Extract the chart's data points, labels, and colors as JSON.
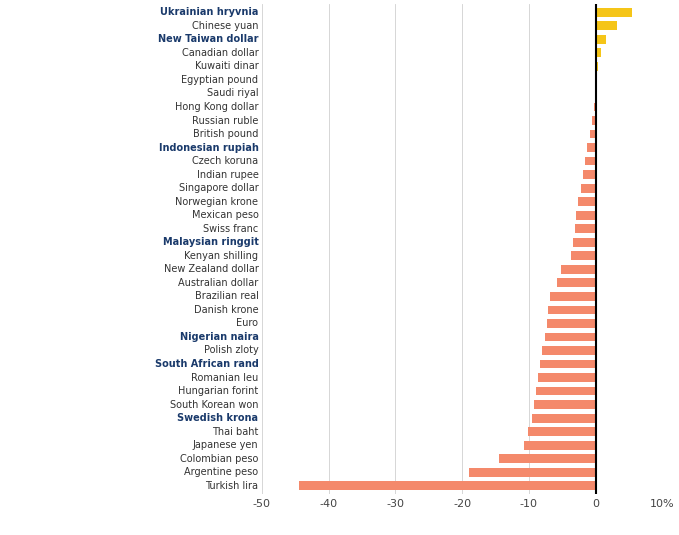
{
  "currencies": [
    "Ukrainian hryvnia",
    "Chinese yuan",
    "New Taiwan dollar",
    "Canadian dollar",
    "Kuwaiti dinar",
    "Egyptian pound",
    "Saudi riyal",
    "Hong Kong dollar",
    "Russian ruble",
    "British pound",
    "Indonesian rupiah",
    "Czech koruna",
    "Indian rupee",
    "Singapore dollar",
    "Norwegian krone",
    "Mexican peso",
    "Swiss franc",
    "Malaysian ringgit",
    "Kenyan shilling",
    "New Zealand dollar",
    "Australian dollar",
    "Brazilian real",
    "Danish krone",
    "Euro",
    "Nigerian naira",
    "Polish zloty",
    "South African rand",
    "Romanian leu",
    "Hungarian forint",
    "South Korean won",
    "Swedish krona",
    "Thai baht",
    "Japanese yen",
    "Colombian peso",
    "Argentine peso",
    "Turkish lira"
  ],
  "bold_currencies": [
    "Ukrainian hryvnia",
    "New Taiwan dollar",
    "Indonesian rupiah",
    "Malaysian ringgit",
    "Nigerian naira",
    "South African rand",
    "Swedish krona"
  ],
  "values": [
    5.5,
    3.2,
    1.5,
    0.8,
    0.4,
    0.0,
    0.0,
    -0.3,
    -0.5,
    -0.9,
    -1.3,
    -1.6,
    -1.9,
    -2.2,
    -2.6,
    -2.9,
    -3.1,
    -3.4,
    -3.7,
    -5.2,
    -5.8,
    -6.8,
    -7.1,
    -7.3,
    -7.6,
    -8.0,
    -8.3,
    -8.6,
    -8.9,
    -9.2,
    -9.6,
    -10.2,
    -10.8,
    -14.5,
    -19.0,
    -44.5
  ],
  "positive_color": "#F5C518",
  "negative_color": "#F4896B",
  "background_color": "#FFFFFF",
  "grid_color": "#D0D0D0",
  "xlim": [
    -50,
    10
  ],
  "xticks": [
    -50,
    -40,
    -30,
    -20,
    -10,
    0,
    10
  ],
  "figsize": [
    6.79,
    5.35
  ],
  "dpi": 100
}
